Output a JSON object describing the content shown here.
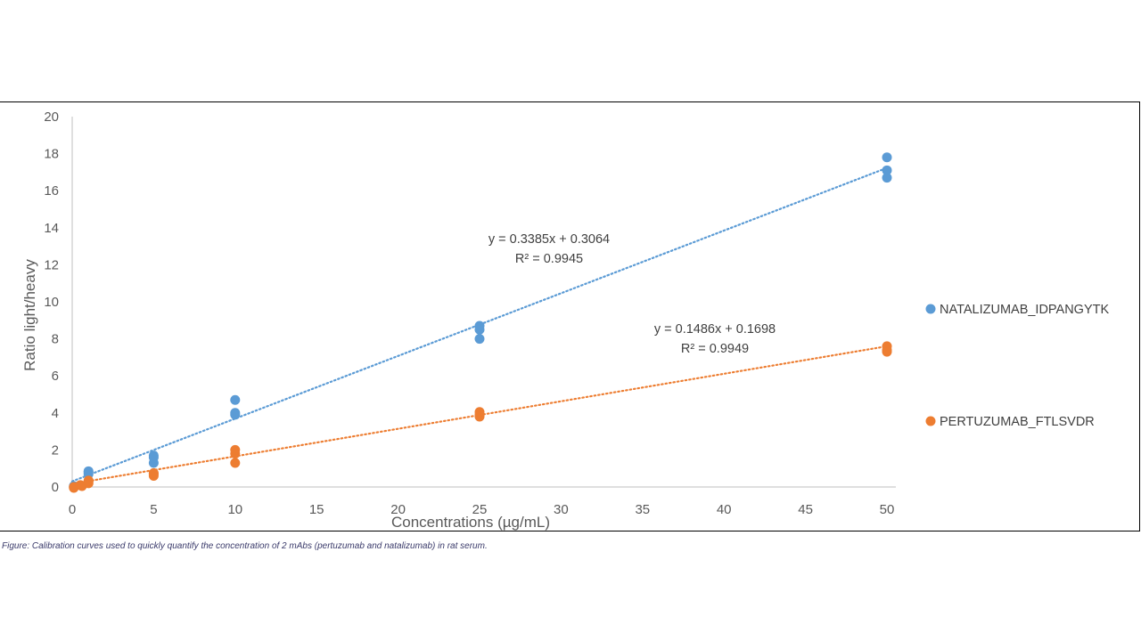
{
  "chart_data": {
    "type": "scatter",
    "xlabel": "Concentrations (µg/mL)",
    "ylabel": "Ratio light/heavy",
    "xlim": [
      0,
      50
    ],
    "ylim": [
      0,
      20
    ],
    "x_ticks": [
      "0",
      "5",
      "10",
      "15",
      "20",
      "25",
      "30",
      "35",
      "40",
      "45",
      "50"
    ],
    "y_ticks": [
      "0",
      "2",
      "4",
      "6",
      "8",
      "10",
      "12",
      "14",
      "16",
      "18",
      "20"
    ],
    "grid": false,
    "legend_position": "right",
    "series": [
      {
        "name": "NATALIZUMAB_IDPANGYTK",
        "color": "#5B9BD5",
        "points": [
          [
            0.1,
            0.0
          ],
          [
            0.1,
            0.05
          ],
          [
            1,
            0.7
          ],
          [
            1,
            0.8
          ],
          [
            1,
            0.85
          ],
          [
            5,
            1.3
          ],
          [
            5,
            1.6
          ],
          [
            5,
            1.7
          ],
          [
            10,
            3.9
          ],
          [
            10,
            4.0
          ],
          [
            10,
            4.7
          ],
          [
            25,
            8.0
          ],
          [
            25,
            8.5
          ],
          [
            25,
            8.7
          ],
          [
            50,
            16.7
          ],
          [
            50,
            17.1
          ],
          [
            50,
            17.8
          ]
        ],
        "trendline": {
          "slope": 0.3385,
          "intercept": 0.3064,
          "equation": "y = 0.3385x + 0.3064",
          "r2_label": "R² = 0.9945"
        }
      },
      {
        "name": "PERTUZUMAB_FTLSVDR",
        "color": "#ED7D31",
        "points": [
          [
            0.1,
            0.0
          ],
          [
            0.1,
            -0.05
          ],
          [
            0.5,
            0.1
          ],
          [
            0.6,
            0.05
          ],
          [
            1,
            0.2
          ],
          [
            1,
            0.3
          ],
          [
            1,
            0.35
          ],
          [
            5,
            0.6
          ],
          [
            5,
            0.7
          ],
          [
            5,
            0.75
          ],
          [
            10,
            1.3
          ],
          [
            10,
            1.8
          ],
          [
            10,
            2.0
          ],
          [
            25,
            3.8
          ],
          [
            25,
            3.9
          ],
          [
            25,
            4.05
          ],
          [
            50,
            7.3
          ],
          [
            50,
            7.4
          ],
          [
            50,
            7.6
          ]
        ],
        "trendline": {
          "slope": 0.1486,
          "intercept": 0.1698,
          "equation": "y = 0.1486x + 0.1698",
          "r2_label": "R² = 0.9949"
        }
      }
    ]
  },
  "caption": "Figure: Calibration curves used to quickly quantify the concentration of 2 mAbs (pertuzumab and natalizumab) in rat serum."
}
